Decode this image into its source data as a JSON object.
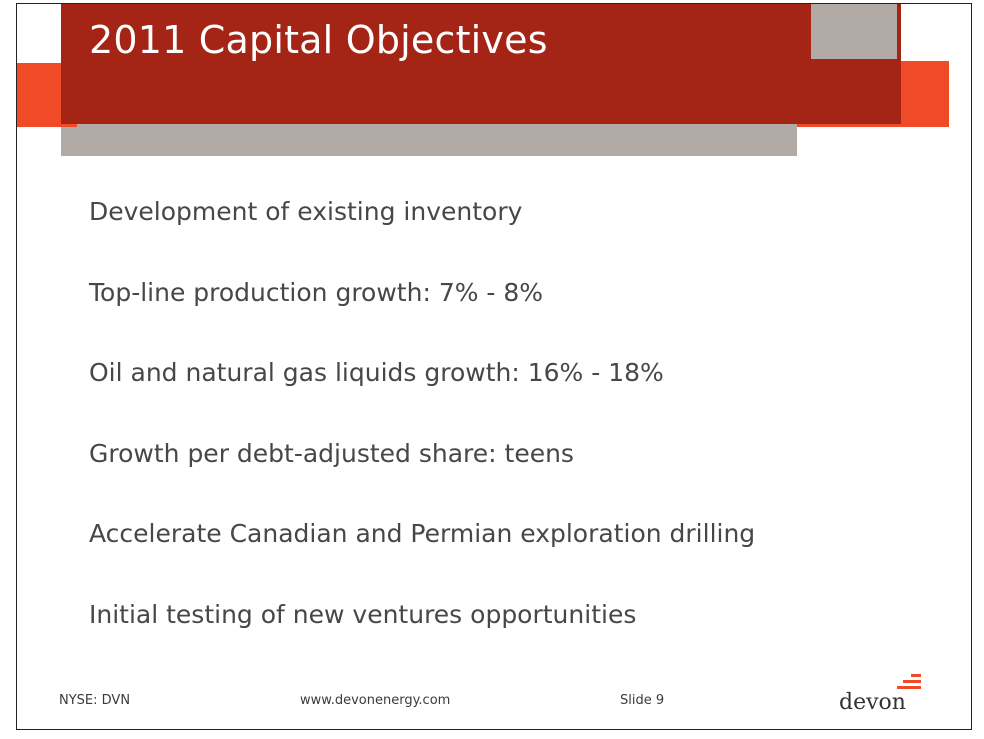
{
  "slide": {
    "title": "2011 Capital Objectives",
    "bullets": [
      "Development of existing inventory",
      "Top-line production growth: 7% - 8%",
      "Oil and natural gas liquids growth: 16% - 18%",
      "Growth per debt-adjusted share: teens",
      "Accelerate Canadian and Permian exploration drilling",
      "Initial testing of new ventures opportunities"
    ]
  },
  "footer": {
    "ticker": "NYSE: DVN",
    "url": "www.devonenergy.com",
    "slide_number": "Slide 9"
  },
  "logo": {
    "text": "devon",
    "icon": "devon-flame-stripes-icon"
  },
  "colors": {
    "dark_red": "#a42415",
    "orange": "#f04a26",
    "gray": "#b2aba5",
    "body_text": "#4a4645"
  }
}
